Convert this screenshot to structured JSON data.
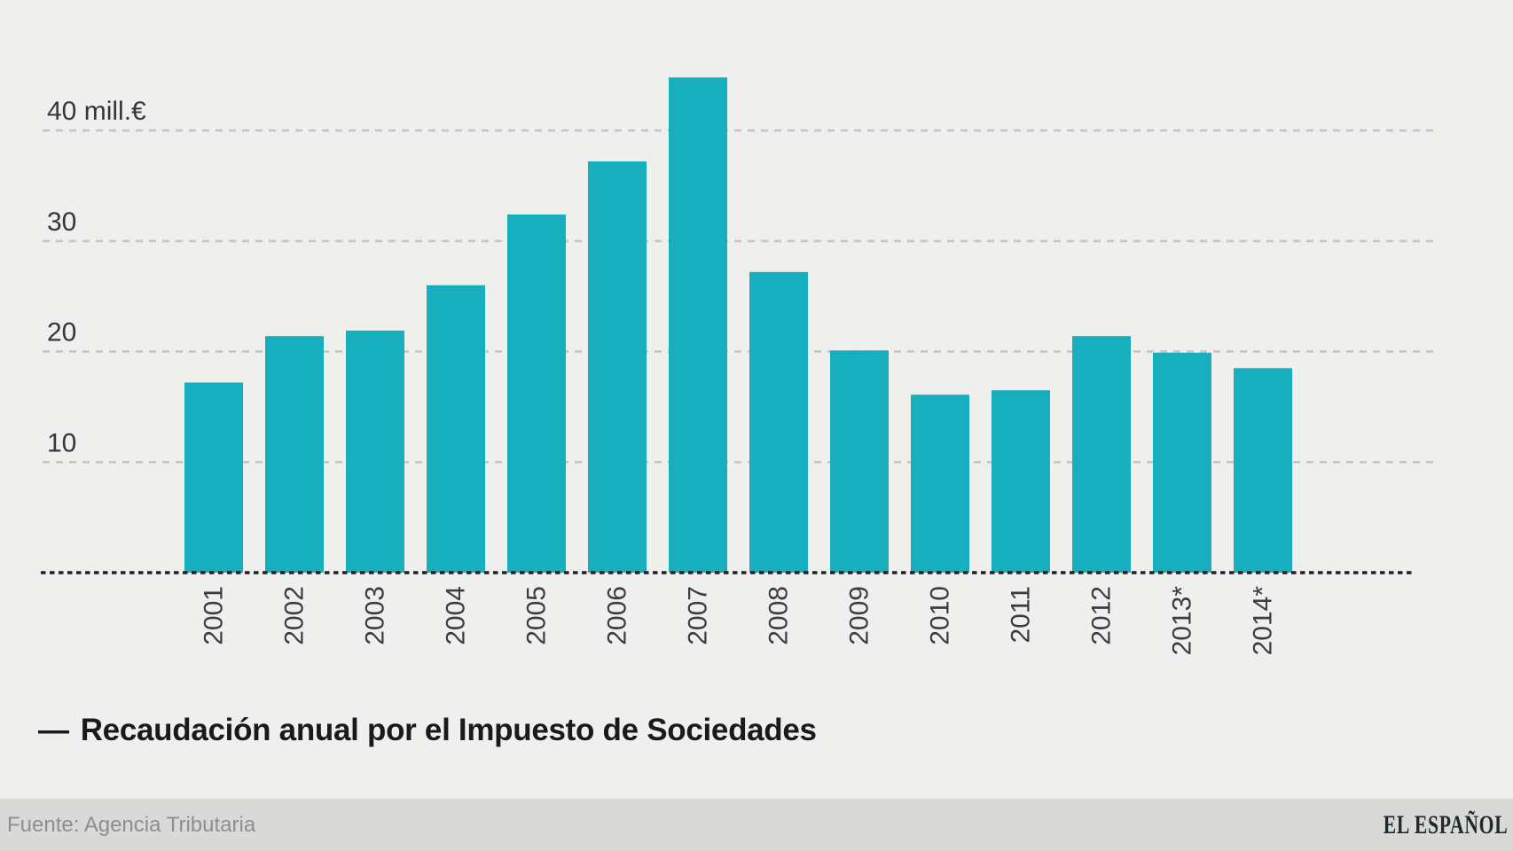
{
  "colors": {
    "background": "#efefee",
    "footer_band": "#d9d9d8",
    "bar": "#17afbe",
    "gridline": "#c6c6c5",
    "baseline": "#222222",
    "axis_text": "#3c3c3c",
    "title_text": "#1a1a1a",
    "source_text": "#8e8e8e",
    "brand_text": "#1f292e"
  },
  "chart_data": {
    "type": "bar",
    "title": "Recaudación anual por el Impuesto de Sociedades",
    "categories": [
      "2001",
      "2002",
      "2003",
      "2004",
      "2005",
      "2006",
      "2007",
      "2008",
      "2009",
      "2010",
      "2011",
      "2012",
      "2013*",
      "2014*"
    ],
    "values": [
      17.2,
      21.4,
      21.9,
      26.0,
      32.4,
      37.2,
      44.8,
      27.2,
      20.1,
      16.1,
      16.5,
      21.4,
      19.9,
      18.5
    ],
    "xlabel": "",
    "ylabel": "mill.€",
    "ylim": [
      0,
      47
    ],
    "grid": "horizontal-dashed",
    "legend_position": "below-chart",
    "bar_color": "#17afbe",
    "y_ticks": [
      {
        "value": 40,
        "label": "40 mill.€"
      },
      {
        "value": 30,
        "label": "30"
      },
      {
        "value": 20,
        "label": "20"
      },
      {
        "value": 10,
        "label": "10"
      }
    ],
    "x_label_rotation": -90
  },
  "legend": {
    "dash": "—",
    "label": "Recaudación anual por el Impuesto de Sociedades"
  },
  "footer": {
    "source": "Fuente: Agencia Tributaria",
    "brand": "EL ESPAÑOL"
  }
}
